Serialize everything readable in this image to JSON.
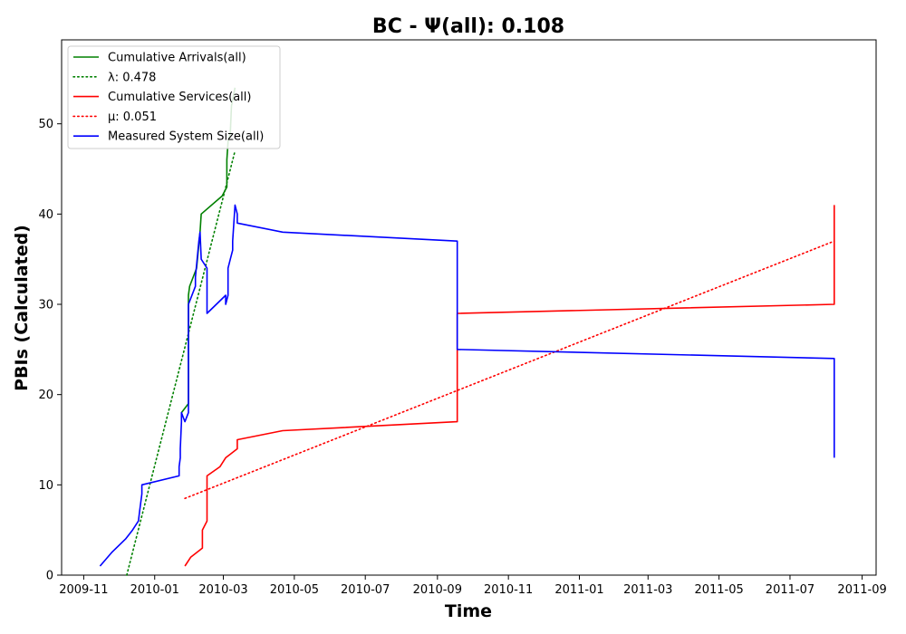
{
  "chart_data": {
    "type": "line",
    "title": "BC -  Ψ(all): 0.108",
    "xlabel": "Time",
    "ylabel": "PBIs (Calculated)",
    "xlim": [
      "2009-10-13",
      "2011-09-13"
    ],
    "ylim": [
      0,
      59.3
    ],
    "grid": false,
    "legend_position": "top-left",
    "x_ticks": [
      "2009-11",
      "2010-01",
      "2010-03",
      "2010-05",
      "2010-07",
      "2010-09",
      "2010-11",
      "2011-01",
      "2011-03",
      "2011-05",
      "2011-07",
      "2011-09"
    ],
    "y_ticks": [
      0,
      10,
      20,
      30,
      40,
      50
    ],
    "series": [
      {
        "name": "Cumulative Arrivals(all)",
        "color": "#008000",
        "style": "solid",
        "points": [
          [
            "2010-01-24",
            18
          ],
          [
            "2010-01-30",
            19
          ],
          [
            "2010-01-30",
            31
          ],
          [
            "2010-01-31",
            32
          ],
          [
            "2010-02-06",
            34
          ],
          [
            "2010-02-09",
            38
          ],
          [
            "2010-02-10",
            40
          ],
          [
            "2010-02-28",
            42
          ],
          [
            "2010-03-04",
            43
          ],
          [
            "2010-03-04",
            46
          ],
          [
            "2010-03-05",
            48
          ],
          [
            "2010-03-07",
            49
          ],
          [
            "2010-03-08",
            52
          ],
          [
            "2010-03-11",
            54
          ]
        ]
      },
      {
        "name": "λ: 0.478",
        "color": "#008000",
        "style": "dotted",
        "points": [
          [
            "2009-12-08",
            0
          ],
          [
            "2010-03-11",
            47
          ]
        ]
      },
      {
        "name": "Cumulative Services(all)",
        "color": "#ff0000",
        "style": "solid",
        "points": [
          [
            "2010-01-27",
            1
          ],
          [
            "2010-02-01",
            2
          ],
          [
            "2010-02-11",
            3
          ],
          [
            "2010-02-11",
            5
          ],
          [
            "2010-02-15",
            6
          ],
          [
            "2010-02-15",
            11
          ],
          [
            "2010-02-26",
            12
          ],
          [
            "2010-03-03",
            13
          ],
          [
            "2010-03-13",
            14
          ],
          [
            "2010-03-13",
            15
          ],
          [
            "2010-04-21",
            16
          ],
          [
            "2010-09-18",
            17
          ],
          [
            "2010-09-18",
            29
          ],
          [
            "2011-08-08",
            30
          ],
          [
            "2011-08-08",
            41
          ]
        ]
      },
      {
        "name": "μ: 0.051",
        "color": "#ff0000",
        "style": "dotted",
        "points": [
          [
            "2010-01-27",
            8.5
          ],
          [
            "2011-08-08",
            37
          ]
        ]
      },
      {
        "name": "Measured System Size(all)",
        "color": "#0000ff",
        "style": "solid",
        "points": [
          [
            "2009-11-15",
            1
          ],
          [
            "2009-11-25",
            2.5
          ],
          [
            "2009-12-07",
            4
          ],
          [
            "2009-12-13",
            5
          ],
          [
            "2009-12-18",
            6
          ],
          [
            "2009-12-19",
            7
          ],
          [
            "2009-12-20",
            8
          ],
          [
            "2009-12-21",
            9
          ],
          [
            "2009-12-21",
            10
          ],
          [
            "2010-01-22",
            11
          ],
          [
            "2010-01-22",
            12
          ],
          [
            "2010-01-23",
            13
          ],
          [
            "2010-01-23",
            14
          ],
          [
            "2010-01-24",
            17
          ],
          [
            "2010-01-24",
            18
          ],
          [
            "2010-01-27",
            17
          ],
          [
            "2010-01-30",
            18
          ],
          [
            "2010-01-30",
            30
          ],
          [
            "2010-02-05",
            32
          ],
          [
            "2010-02-05",
            33
          ],
          [
            "2010-02-08",
            37
          ],
          [
            "2010-02-09",
            38
          ],
          [
            "2010-02-10",
            35
          ],
          [
            "2010-02-15",
            34
          ],
          [
            "2010-02-15",
            29
          ],
          [
            "2010-03-03",
            31
          ],
          [
            "2010-03-03",
            30
          ],
          [
            "2010-03-05",
            31
          ],
          [
            "2010-03-05",
            34
          ],
          [
            "2010-03-07",
            35
          ],
          [
            "2010-03-09",
            36
          ],
          [
            "2010-03-09",
            37
          ],
          [
            "2010-03-10",
            39
          ],
          [
            "2010-03-11",
            41
          ],
          [
            "2010-03-13",
            40
          ],
          [
            "2010-03-13",
            39
          ],
          [
            "2010-04-21",
            38
          ],
          [
            "2010-09-18",
            37
          ],
          [
            "2010-09-18",
            25
          ],
          [
            "2011-08-08",
            24
          ],
          [
            "2011-08-08",
            13
          ]
        ]
      }
    ]
  }
}
